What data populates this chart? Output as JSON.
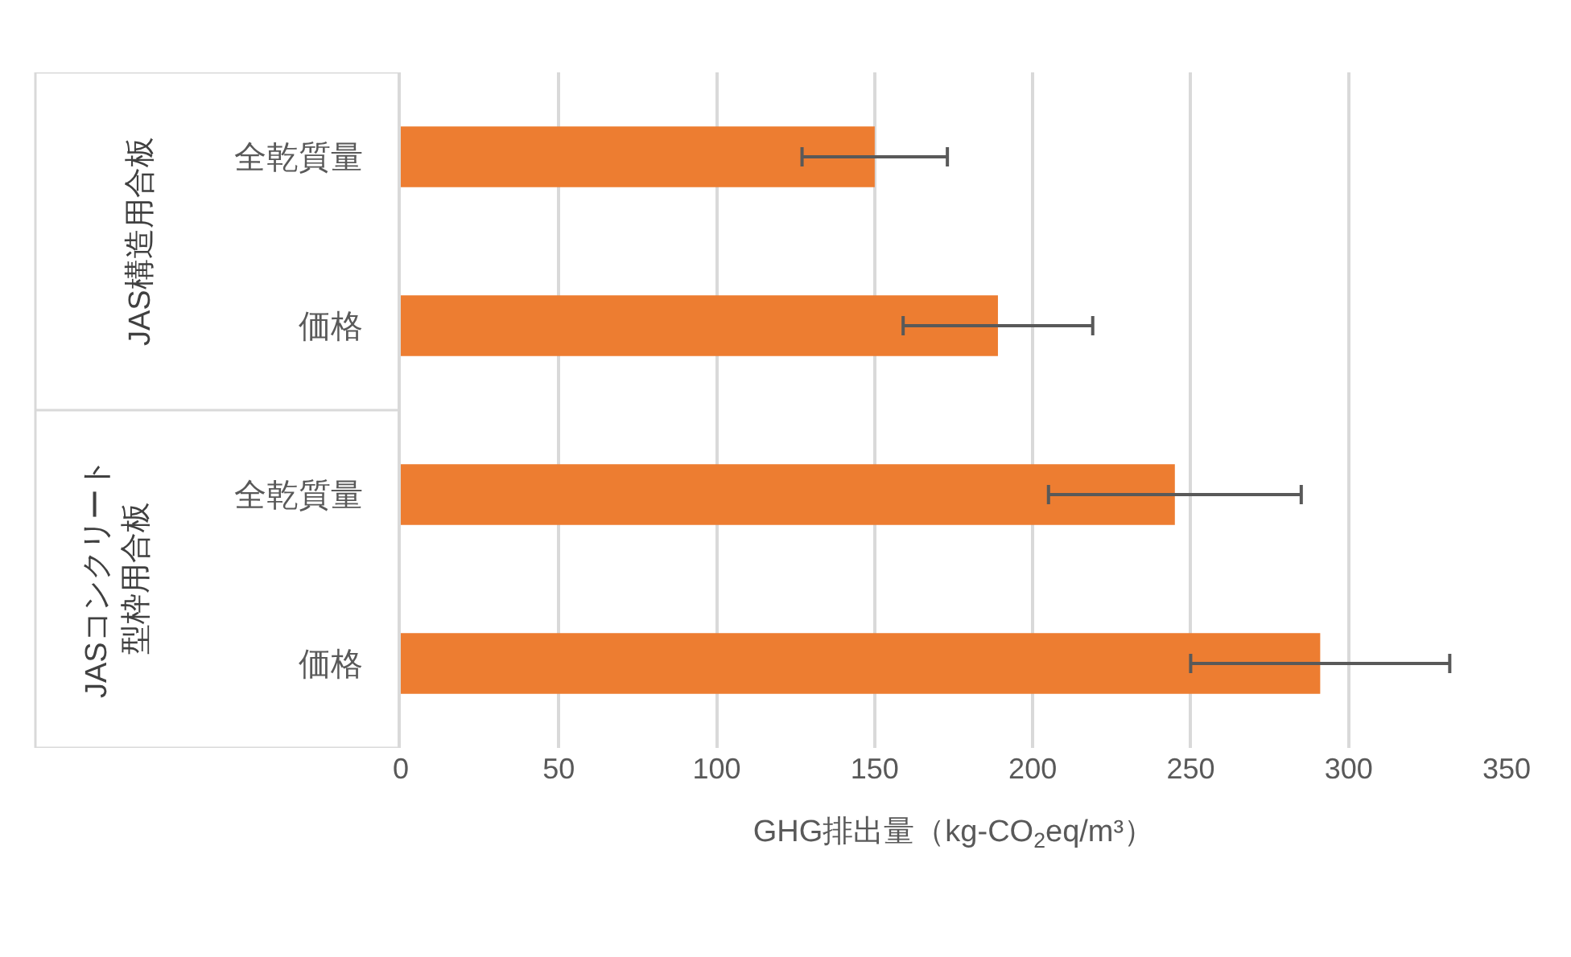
{
  "chart_data": {
    "type": "bar",
    "orientation": "horizontal",
    "categories": [
      "全乾質量",
      "価格",
      "全乾質量",
      "価格"
    ],
    "series": [
      {
        "color": "#ed7d31",
        "values": [
          150,
          189,
          245,
          291
        ],
        "errors": [
          23,
          30,
          40,
          41
        ]
      }
    ],
    "xlabel": "GHG排出量（kg-CO$_{2}$eq/m³）",
    "xlim": [
      0,
      350
    ],
    "xticks": [
      0,
      50,
      100,
      150,
      200,
      250,
      300,
      350
    ],
    "grid": "x",
    "annotations": [
      "JAS構造用合板",
      "JASコンクリート型枠用合板"
    ]
  }
}
